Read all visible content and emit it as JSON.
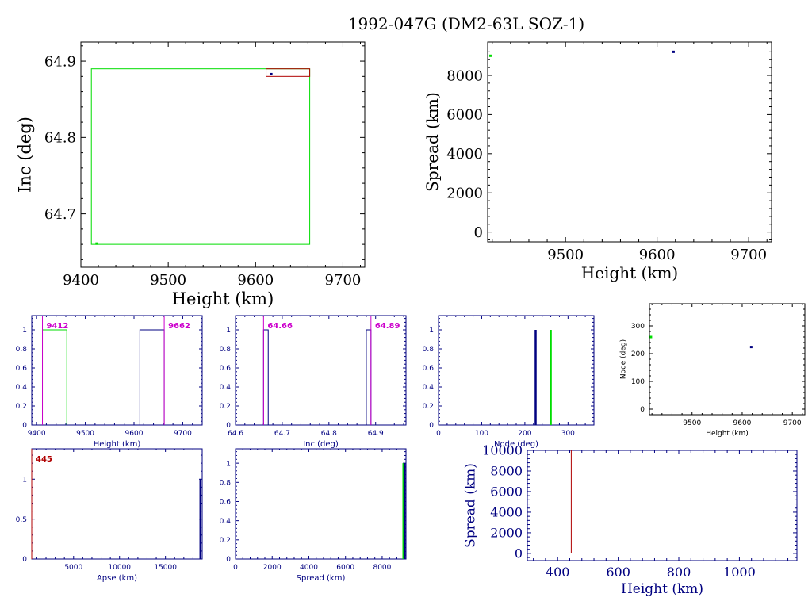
{
  "title": "1992-047G (DM2-63L SOZ-1)",
  "colors": {
    "black": "#000000",
    "blue": "#000080",
    "green": "#00dd00",
    "red": "#b00000",
    "magenta": "#cc00cc"
  },
  "chart_data": [
    {
      "id": "inc_vs_height",
      "type": "scatter",
      "xlabel": "Height (km)",
      "ylabel": "Inc (deg)",
      "xlim": [
        9400,
        9725
      ],
      "ylim": [
        64.63,
        64.925
      ],
      "xticks": [
        9400,
        9500,
        9600,
        9700
      ],
      "yticks": [
        64.7,
        64.8,
        64.9
      ],
      "ytick_labels": [
        "64.7",
        "64.8",
        "64.9"
      ],
      "rects": [
        {
          "x0": 9412,
          "x1": 9662,
          "y0": 64.66,
          "y1": 64.89,
          "color": "green"
        },
        {
          "x0": 9612,
          "x1": 9662,
          "y0": 64.88,
          "y1": 64.89,
          "color": "red"
        }
      ],
      "points": [
        {
          "x": 9618,
          "y": 64.883,
          "color": "blue"
        },
        {
          "x": 9418,
          "y": 64.661,
          "color": "green"
        }
      ]
    },
    {
      "id": "spread_vs_height",
      "type": "scatter",
      "xlabel": "Height (km)",
      "ylabel": "Spread (km)",
      "xlim": [
        9415,
        9725
      ],
      "ylim": [
        -500,
        9700
      ],
      "xticks": [
        9500,
        9600,
        9700
      ],
      "yticks": [
        0,
        2000,
        4000,
        6000,
        8000
      ],
      "points": [
        {
          "x": 9618,
          "y": 9200,
          "color": "blue"
        },
        {
          "x": 9418,
          "y": 9000,
          "color": "green"
        }
      ]
    },
    {
      "id": "height_hist",
      "type": "bar",
      "xlabel": "Height (km)",
      "ylabel": "",
      "xlim": [
        9390,
        9740
      ],
      "ylim": [
        0,
        1.15
      ],
      "xticks": [
        9400,
        9500,
        9600,
        9700
      ],
      "yticks": [
        0,
        0.2,
        0.4,
        0.6,
        0.8,
        1
      ],
      "ytick_labels": [
        "0",
        "0.2",
        "0.4",
        "0.6",
        "0.8",
        "1"
      ],
      "bars": [
        {
          "x0": 9412,
          "x1": 9462,
          "value": 1,
          "color": "green"
        },
        {
          "x0": 9612,
          "x1": 9662,
          "value": 1,
          "color": "blue"
        }
      ],
      "vlines": [
        {
          "x": 9412,
          "label": "9412",
          "color": "magenta",
          "label_side": "right"
        },
        {
          "x": 9662,
          "label": "9662",
          "color": "magenta",
          "label_side": "right"
        }
      ]
    },
    {
      "id": "inc_hist",
      "type": "bar",
      "xlabel": "Inc (deg)",
      "ylabel": "",
      "xlim": [
        64.6,
        64.965
      ],
      "ylim": [
        0,
        1.15
      ],
      "xticks": [
        64.6,
        64.7,
        64.8,
        64.9
      ],
      "xtick_labels": [
        "64.6",
        "64.7",
        "64.8",
        "64.9"
      ],
      "yticks": [
        0,
        0.2,
        0.4,
        0.6,
        0.8,
        1
      ],
      "ytick_labels": [
        "0",
        "0.2",
        "0.4",
        "0.6",
        "0.8",
        "1"
      ],
      "bars": [
        {
          "x0": 64.66,
          "x1": 64.67,
          "value": 1,
          "color": "blue"
        },
        {
          "x0": 64.88,
          "x1": 64.89,
          "value": 1,
          "color": "blue"
        }
      ],
      "vlines": [
        {
          "x": 64.66,
          "label": "64.66",
          "color": "magenta",
          "label_side": "right"
        },
        {
          "x": 64.89,
          "label": "64.89",
          "color": "magenta",
          "label_side": "right"
        }
      ]
    },
    {
      "id": "node_hist",
      "type": "bar",
      "xlabel": "Node (deg)",
      "ylabel": "",
      "xlim": [
        0,
        360
      ],
      "ylim": [
        0,
        1.15
      ],
      "xticks": [
        0,
        100,
        200,
        300
      ],
      "yticks": [
        0,
        0.2,
        0.4,
        0.6,
        0.8,
        1
      ],
      "ytick_labels": [
        "0",
        "0.2",
        "0.4",
        "0.6",
        "0.8",
        "1"
      ],
      "spikes": [
        {
          "x": 225,
          "value": 1,
          "color": "blue"
        },
        {
          "x": 260,
          "value": 1,
          "color": "green"
        }
      ]
    },
    {
      "id": "node_vs_height",
      "type": "scatter",
      "xlabel": "Height (km)",
      "ylabel": "Node (deg)",
      "xlim": [
        9415,
        9725
      ],
      "ylim": [
        -20,
        380
      ],
      "xticks": [
        9500,
        9600,
        9700
      ],
      "yticks": [
        0,
        100,
        200,
        300
      ],
      "points": [
        {
          "x": 9618,
          "y": 224,
          "color": "blue"
        },
        {
          "x": 9418,
          "y": 260,
          "color": "green"
        }
      ]
    },
    {
      "id": "apse_hist",
      "type": "bar",
      "xlabel": "Apse (km)",
      "ylabel": "",
      "xlim": [
        445,
        19000
      ],
      "ylim": [
        0,
        1.38
      ],
      "xticks": [
        5000,
        10000,
        15000
      ],
      "yticks": [
        0,
        0.5,
        1
      ],
      "ytick_labels": [
        "0",
        "0.5",
        "1"
      ],
      "spikes": [
        {
          "x": 18810,
          "value": 1,
          "color": "blue"
        }
      ],
      "vlines": [
        {
          "x": 445,
          "label": "445",
          "color": "red",
          "label_side": "right"
        }
      ]
    },
    {
      "id": "spread_hist",
      "type": "bar",
      "xlabel": "Spread (km)",
      "ylabel": "",
      "xlim": [
        0,
        9300
      ],
      "ylim": [
        0,
        1.15
      ],
      "xticks": [
        0,
        2000,
        4000,
        6000,
        8000
      ],
      "yticks": [
        0,
        0.2,
        0.4,
        0.6,
        0.8,
        1
      ],
      "ytick_labels": [
        "0",
        "0.2",
        "0.4",
        "0.6",
        "0.8",
        "1"
      ],
      "spikes": [
        {
          "x": 9160,
          "value": 1,
          "color": "green"
        },
        {
          "x": 9220,
          "value": 1,
          "color": "blue"
        }
      ]
    },
    {
      "id": "spread_vs_height_low",
      "type": "line",
      "xlabel": "Height (km)",
      "ylabel": "Spread (km)",
      "xlim": [
        300,
        1190
      ],
      "ylim": [
        -700,
        10000
      ],
      "xticks": [
        400,
        600,
        800,
        1000
      ],
      "yticks": [
        0,
        2000,
        4000,
        6000,
        8000,
        10000
      ],
      "vlines": [
        {
          "x": 445,
          "y0": 0,
          "y1": 10000,
          "color": "red"
        }
      ]
    }
  ]
}
